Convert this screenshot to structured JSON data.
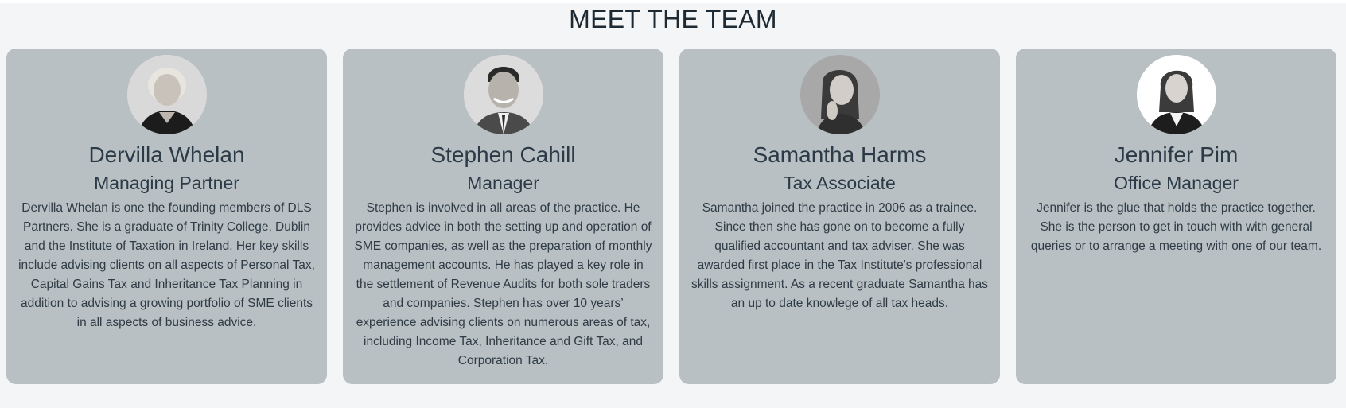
{
  "section": {
    "title": "MEET THE TEAM"
  },
  "team": [
    {
      "name": "Dervilla Whelan",
      "role": "Managing Partner",
      "bio": "Dervilla Whelan is one the founding members of DLS Partners. She is a graduate of Trinity College, Dublin and the Institute of Taxation in Ireland. Her key skills include advising clients on all aspects of Personal Tax, Capital Gains Tax and Inheritance Tax Planning in addition to advising a growing portfolio of SME clients in all aspects of business advice.",
      "photo_icon": "woman-portrait-icon"
    },
    {
      "name": "Stephen Cahill",
      "role": "Manager",
      "bio": "Stephen is involved in all areas of the practice. He provides advice in both the setting up and operation of SME companies, as well as the preparation of monthly management accounts. He has played a key role in the settlement of Revenue Audits for both sole traders and companies. Stephen has over 10 years’ experience advising clients on numerous areas of tax, including Income Tax, Inheritance and Gift Tax, and Corporation Tax.",
      "photo_icon": "man-portrait-icon"
    },
    {
      "name": "Samantha Harms",
      "role": "Tax Associate",
      "bio": "Samantha joined the practice in 2006 as a trainee. Since then she has gone on to become a fully qualified accountant and tax adviser. She was awarded first place in the Tax Institute's professional skills assignment. As a recent graduate Samantha has an up to date knowlege of all tax heads.",
      "photo_icon": "woman-portrait-icon"
    },
    {
      "name": "Jennifer Pim",
      "role": "Office Manager",
      "bio": "Jennifer is the glue that holds the practice together. She is the person to get in touch with with general queries or to arrange a meeting with one of our team.",
      "photo_icon": "woman-portrait-icon"
    }
  ],
  "colors": {
    "page_background": "#f3f5f6",
    "card_background": "#b8c0c3",
    "text": "#2b3a46"
  }
}
